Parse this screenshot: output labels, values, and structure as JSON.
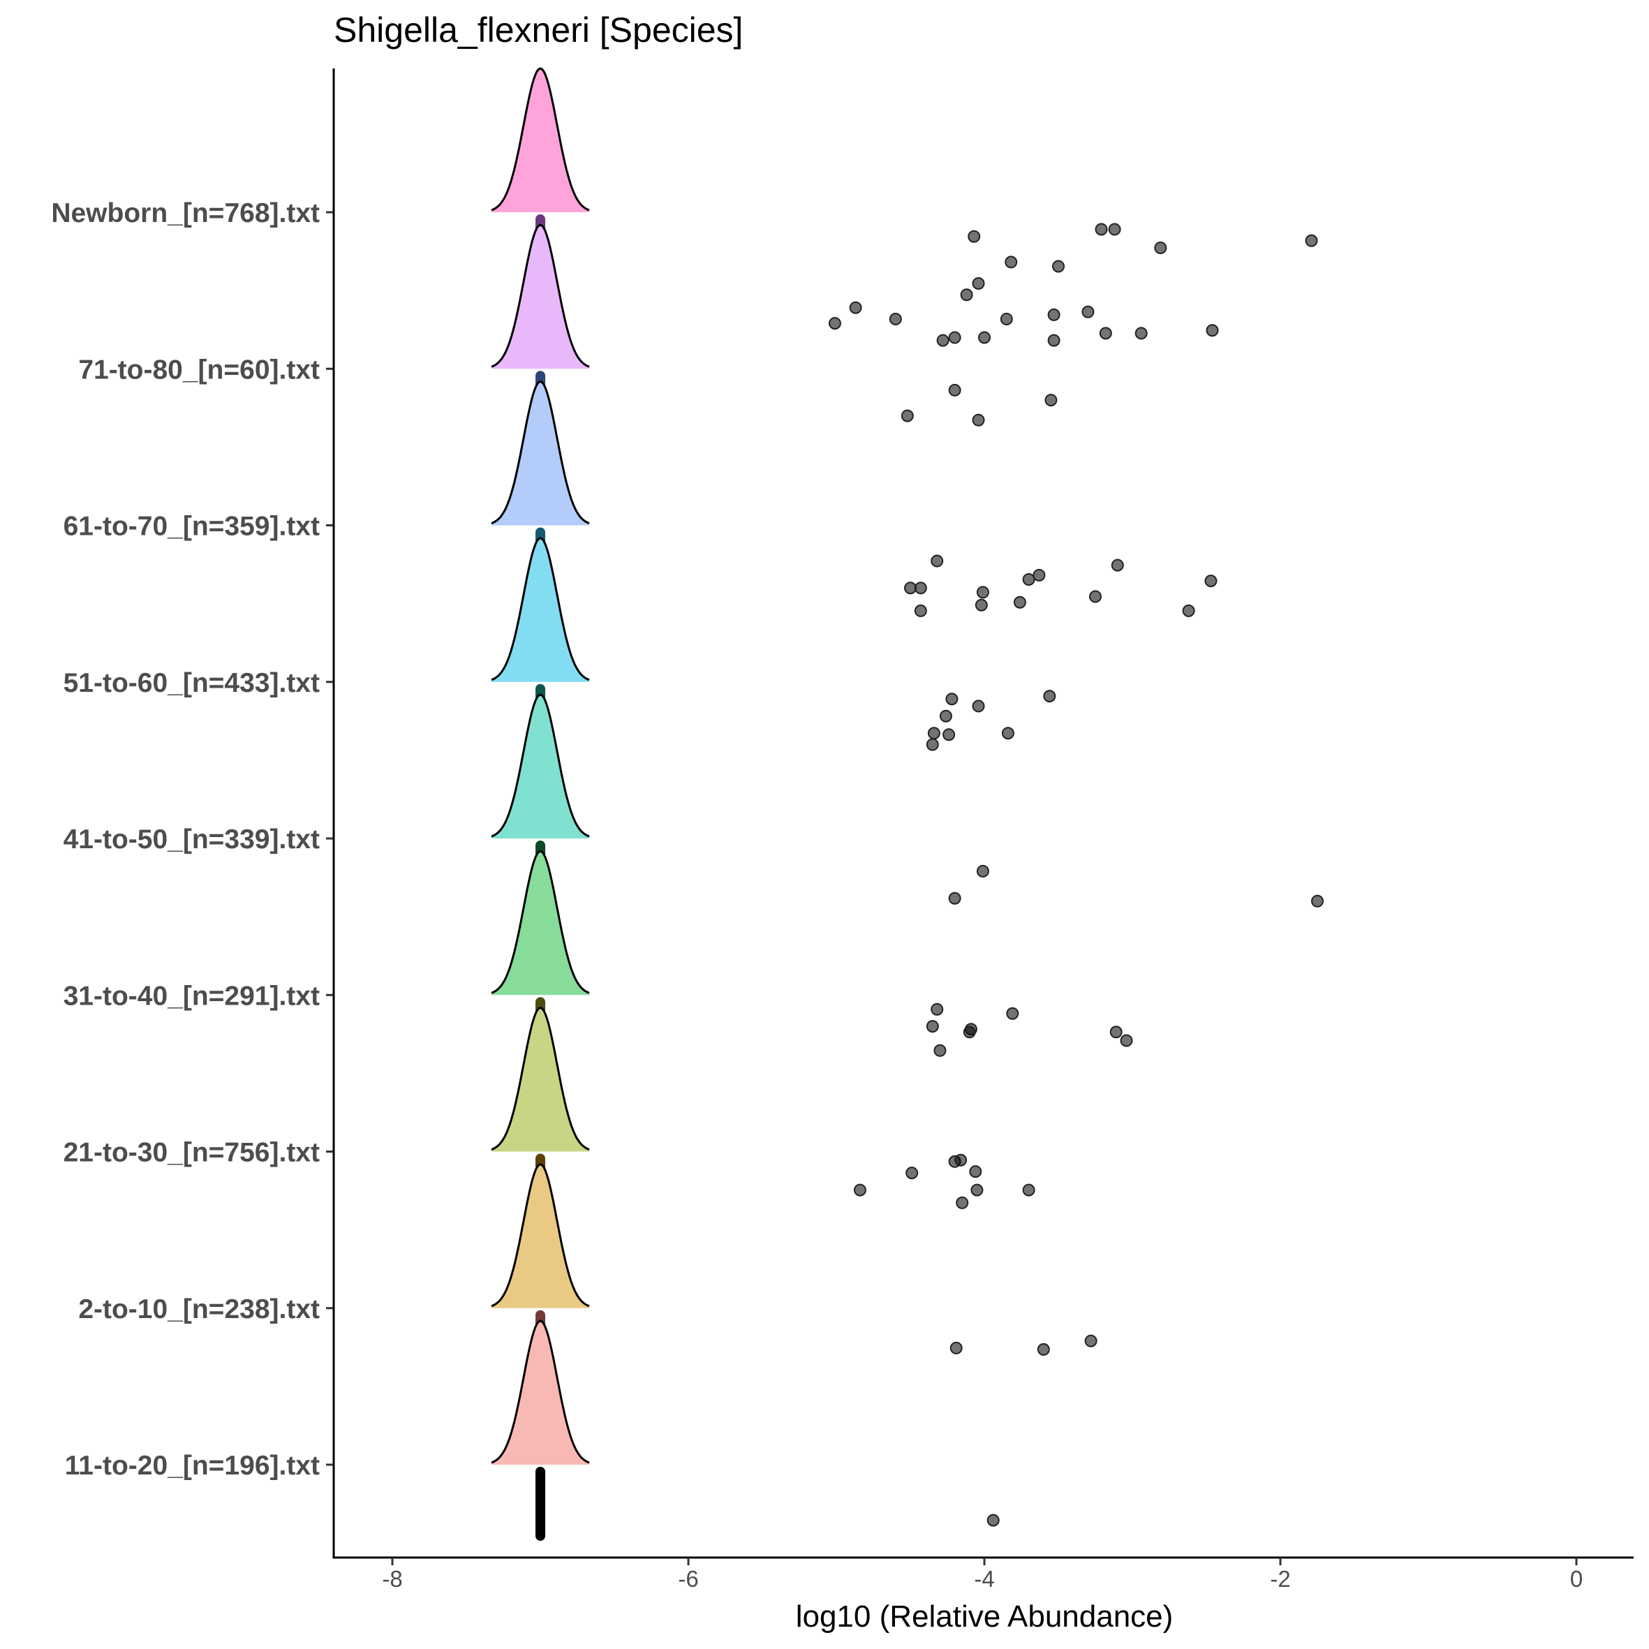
{
  "chart_data": {
    "type": "ridgeline",
    "title": "Shigella_flexneri [Species]",
    "xlabel": "log10 (Relative Abundance)",
    "ylabel": "",
    "xlim": [
      -8.4,
      0.4
    ],
    "xticks": [
      -8,
      -6,
      -4,
      -2,
      0
    ],
    "xtick_labels": [
      "-8",
      "-6",
      "-4",
      "-2",
      "0"
    ],
    "grid": false,
    "legend": "none",
    "baseline_value": -7,
    "categories": [
      {
        "label": "Newborn_[n=768].txt",
        "fill": "#ffa3db",
        "bar": "#6a3a7e",
        "points": [
          [
            -4.07,
            0.17
          ],
          [
            -3.82,
            0.35
          ],
          [
            -3.5,
            0.38
          ],
          [
            -3.21,
            0.12
          ],
          [
            -3.12,
            0.12
          ],
          [
            -2.81,
            0.25
          ],
          [
            -1.79,
            0.2
          ],
          [
            -4.04,
            0.5
          ],
          [
            -4.12,
            0.58
          ],
          [
            -4.87,
            0.67
          ],
          [
            -5.01,
            0.78
          ],
          [
            -4.6,
            0.75
          ],
          [
            -3.85,
            0.75
          ],
          [
            -3.53,
            0.72
          ],
          [
            -3.3,
            0.7
          ],
          [
            -4.28,
            0.9
          ],
          [
            -4.2,
            0.88
          ],
          [
            -4.0,
            0.88
          ],
          [
            -3.53,
            0.9
          ],
          [
            -3.18,
            0.85
          ],
          [
            -2.94,
            0.85
          ],
          [
            -2.46,
            0.83
          ]
        ]
      },
      {
        "label": "71-to-80_[n=60].txt",
        "fill": "#e8b8fb",
        "bar": "#2e4577",
        "points": [
          [
            -4.2,
            0.15
          ],
          [
            -3.55,
            0.22
          ],
          [
            -4.52,
            0.33
          ],
          [
            -4.04,
            0.36
          ]
        ]
      },
      {
        "label": "61-to-70_[n=359].txt",
        "fill": "#b3ccfa",
        "bar": "#145a71",
        "points": [
          [
            -4.32,
            0.25
          ],
          [
            -3.1,
            0.28
          ],
          [
            -3.63,
            0.35
          ],
          [
            -3.7,
            0.38
          ],
          [
            -2.47,
            0.39
          ],
          [
            -4.5,
            0.44
          ],
          [
            -4.43,
            0.44
          ],
          [
            -4.01,
            0.47
          ],
          [
            -3.25,
            0.5
          ],
          [
            -3.76,
            0.54
          ],
          [
            -4.02,
            0.56
          ],
          [
            -4.43,
            0.6
          ],
          [
            -2.62,
            0.6
          ]
        ]
      },
      {
        "label": "51-to-60_[n=433].txt",
        "fill": "#82dcf2",
        "bar": "#0e564d",
        "points": [
          [
            -4.22,
            0.12
          ],
          [
            -3.56,
            0.1
          ],
          [
            -4.04,
            0.17
          ],
          [
            -4.26,
            0.24
          ],
          [
            -4.34,
            0.36
          ],
          [
            -4.24,
            0.37
          ],
          [
            -3.84,
            0.36
          ],
          [
            -4.35,
            0.44
          ]
        ]
      },
      {
        "label": "41-to-50_[n=339].txt",
        "fill": "#80e1d1",
        "bar": "#0d4a26",
        "points": [
          [
            -4.01,
            0.23
          ],
          [
            -4.2,
            0.42
          ],
          [
            -1.75,
            0.44
          ]
        ]
      },
      {
        "label": "31-to-40_[n=291].txt",
        "fill": "#87dc9a",
        "bar": "#4d4d10",
        "points": [
          [
            -4.32,
            0.1
          ],
          [
            -3.81,
            0.13
          ],
          [
            -4.35,
            0.22
          ],
          [
            -4.09,
            0.24
          ],
          [
            -4.1,
            0.26
          ],
          [
            -3.11,
            0.26
          ],
          [
            -3.04,
            0.32
          ],
          [
            -4.3,
            0.39
          ]
        ]
      },
      {
        "label": "21-to-30_[n=756].txt",
        "fill": "#c9d585",
        "bar": "#5e4107",
        "points": [
          [
            -4.2,
            0.07
          ],
          [
            -4.16,
            0.06
          ],
          [
            -4.06,
            0.14
          ],
          [
            -4.49,
            0.15
          ],
          [
            -4.84,
            0.27
          ],
          [
            -4.05,
            0.27
          ],
          [
            -3.7,
            0.27
          ],
          [
            -4.15,
            0.36
          ]
        ]
      },
      {
        "label": "2-to-10_[n=238].txt",
        "fill": "#e9c983",
        "bar": "#733b38",
        "points": [
          [
            -3.28,
            0.23
          ],
          [
            -4.19,
            0.28
          ],
          [
            -3.6,
            0.29
          ]
        ]
      },
      {
        "label": "11-to-20_[n=196].txt",
        "fill": "#f8b9b4",
        "bar": "#000000",
        "points": [
          [
            -3.94,
            0.39
          ]
        ]
      }
    ]
  }
}
